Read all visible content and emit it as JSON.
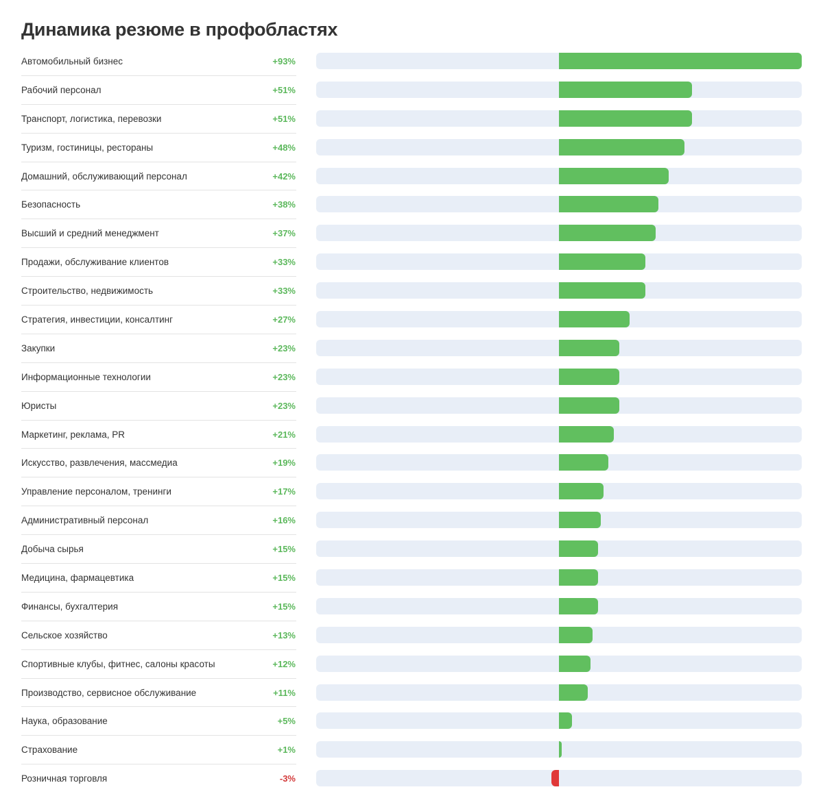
{
  "title": "Динамика резюме в профобластях",
  "chart_data": {
    "type": "bar",
    "orientation": "horizontal",
    "title": "Динамика резюме в профобластях",
    "colors": {
      "positive": "#61bf5f",
      "negative": "#e03838",
      "track": "#e8eef7"
    },
    "value_range": [
      -93,
      93
    ],
    "items": [
      {
        "label": "Автомобильный бизнес",
        "value": 93,
        "display": "+93%"
      },
      {
        "label": "Рабочий персонал",
        "value": 51,
        "display": "+51%"
      },
      {
        "label": "Транспорт, логистика, перевозки",
        "value": 51,
        "display": "+51%"
      },
      {
        "label": "Туризм, гостиницы, рестораны",
        "value": 48,
        "display": "+48%"
      },
      {
        "label": "Домашний, обслуживающий персонал",
        "value": 42,
        "display": "+42%"
      },
      {
        "label": "Безопасность",
        "value": 38,
        "display": "+38%"
      },
      {
        "label": "Высший и средний менеджмент",
        "value": 37,
        "display": "+37%"
      },
      {
        "label": "Продажи, обслуживание клиентов",
        "value": 33,
        "display": "+33%"
      },
      {
        "label": "Строительство, недвижимость",
        "value": 33,
        "display": "+33%"
      },
      {
        "label": "Стратегия, инвестиции, консалтинг",
        "value": 27,
        "display": "+27%"
      },
      {
        "label": "Закупки",
        "value": 23,
        "display": "+23%"
      },
      {
        "label": "Информационные технологии",
        "value": 23,
        "display": "+23%"
      },
      {
        "label": "Юристы",
        "value": 23,
        "display": "+23%"
      },
      {
        "label": "Маркетинг, реклама, PR",
        "value": 21,
        "display": "+21%"
      },
      {
        "label": "Искусство, развлечения, массмедиа",
        "value": 19,
        "display": "+19%"
      },
      {
        "label": "Управление персоналом, тренинги",
        "value": 17,
        "display": "+17%"
      },
      {
        "label": "Административный персонал",
        "value": 16,
        "display": "+16%"
      },
      {
        "label": "Добыча сырья",
        "value": 15,
        "display": "+15%"
      },
      {
        "label": "Медицина, фармацевтика",
        "value": 15,
        "display": "+15%"
      },
      {
        "label": "Финансы, бухгалтерия",
        "value": 15,
        "display": "+15%"
      },
      {
        "label": "Сельское хозяйство",
        "value": 13,
        "display": "+13%"
      },
      {
        "label": "Спортивные клубы, фитнес, салоны красоты",
        "value": 12,
        "display": "+12%"
      },
      {
        "label": "Производство, сервисное обслуживание",
        "value": 11,
        "display": "+11%"
      },
      {
        "label": "Наука, образование",
        "value": 5,
        "display": "+5%"
      },
      {
        "label": "Страхование",
        "value": 1,
        "display": "+1%"
      },
      {
        "label": "Розничная торговля",
        "value": -3,
        "display": "-3%"
      }
    ]
  }
}
